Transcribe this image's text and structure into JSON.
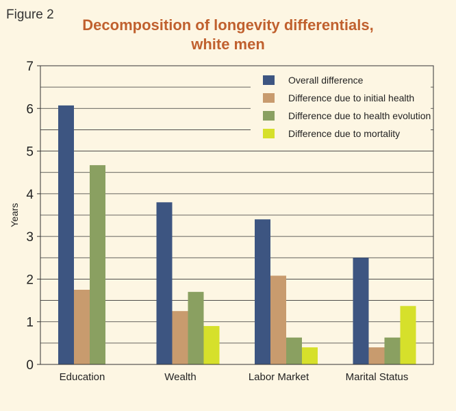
{
  "figure_label": "Figure 2",
  "colors": {
    "title": "#c0602e",
    "background": "#fdf6e3",
    "axis": "#333333",
    "grid": "#333333"
  },
  "chart_data": {
    "type": "bar",
    "title": "Decomposition of longevity differentials,",
    "subtitle": "white men",
    "xlabel": "",
    "ylabel": "Years",
    "ylim": [
      0,
      7
    ],
    "yticks": [
      0,
      1,
      2,
      3,
      4,
      5,
      6,
      7
    ],
    "grid": true,
    "legend_position": "top-right",
    "categories": [
      "Education",
      "Wealth",
      "Labor Market",
      "Marital Status"
    ],
    "series": [
      {
        "name": "Overall difference",
        "color": "#3d5581",
        "values": [
          6.07,
          3.8,
          3.4,
          2.5
        ]
      },
      {
        "name": "Difference due to initial health",
        "color": "#c89b6e",
        "values": [
          1.75,
          1.25,
          2.08,
          0.4
        ]
      },
      {
        "name": "Difference due to health evolution",
        "color": "#8aa061",
        "values": [
          4.67,
          1.7,
          0.63,
          0.63
        ]
      },
      {
        "name": "Difference due to mortality",
        "color": "#d6e02b",
        "values": [
          0,
          0.9,
          0.4,
          1.37
        ]
      }
    ]
  }
}
